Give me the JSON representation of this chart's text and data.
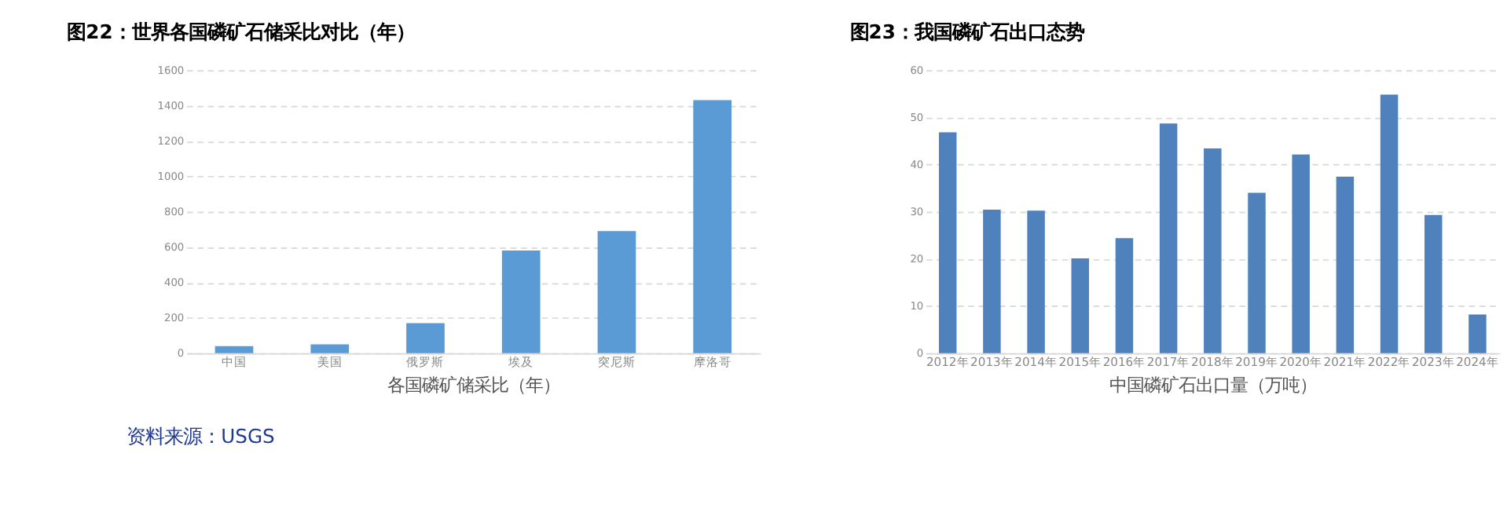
{
  "chart_data": [
    {
      "type": "bar",
      "title": "图22：世界各国磷矿石储采比对比（年）",
      "xlabel": "各国磷矿储采比（年）",
      "categories": [
        "中国",
        "美国",
        "俄罗斯",
        "埃及",
        "突尼斯",
        "摩洛哥"
      ],
      "values": [
        40,
        50,
        170,
        580,
        690,
        1430
      ],
      "color": "#5b9bd5",
      "ylim": [
        0,
        1600
      ],
      "yticks": [
        0,
        200,
        400,
        600,
        800,
        1000,
        1200,
        1400,
        1600
      ],
      "grid": "y",
      "annotations": [
        "资料来源：USGS"
      ]
    },
    {
      "type": "bar",
      "title": "图23：我国磷矿石出口态势",
      "xlabel": "中国磷矿石出口量（万吨）",
      "categories": [
        "2012年",
        "2013年",
        "2014年",
        "2015年",
        "2016年",
        "2017年",
        "2018年",
        "2019年",
        "2020年",
        "2021年",
        "2022年",
        "2023年",
        "2024年"
      ],
      "values": [
        46.8,
        30.4,
        30.2,
        20.1,
        24.4,
        48.7,
        43.4,
        34.0,
        42.1,
        37.4,
        54.8,
        29.3,
        8.2
      ],
      "color": "#4f81bd",
      "ylim": [
        0,
        60
      ],
      "yticks": [
        0,
        10,
        20,
        30,
        40,
        50,
        60
      ],
      "grid": "y"
    }
  ]
}
